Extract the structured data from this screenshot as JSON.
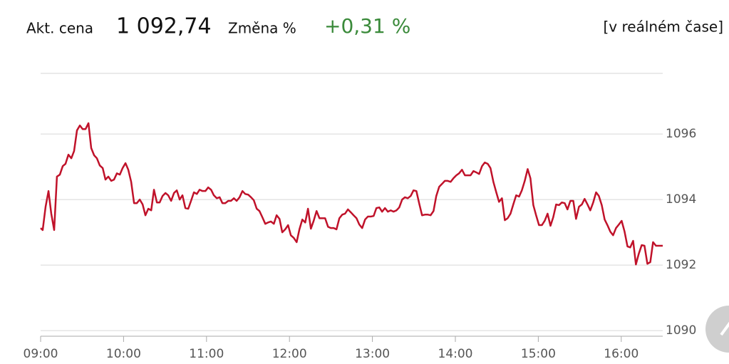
{
  "header": {
    "price_label": "Akt. cena",
    "price": "1 092,74",
    "change_label": "Změna %",
    "change": "+0,31 %",
    "realtime": "[v reálném čase]"
  },
  "chart_data": {
    "type": "line",
    "x": [
      540,
      541.5,
      543.6,
      545.7,
      547.7,
      549.8,
      551.8,
      553.9,
      556,
      558,
      560.1,
      562.2,
      564.2,
      566.3,
      568.4,
      570.4,
      572.5,
      574.6,
      576.6,
      578.7,
      580.7,
      582.8,
      584.9,
      586.9,
      589,
      591.1,
      593.1,
      595.2,
      597.3,
      599.3,
      601.4,
      603.4,
      605.5,
      607.6,
      609.6,
      611.7,
      613.8,
      615.8,
      617.9,
      620,
      622,
      624.1,
      626.1,
      628.2,
      630.3,
      632.3,
      634.4,
      636.5,
      638.5,
      640.6,
      642.6,
      644.7,
      646.8,
      648.8,
      650.9,
      653,
      655,
      657.1,
      659.2,
      661.2,
      663.3,
      665.3,
      667.4,
      669.5,
      671.5,
      673.6,
      675.7,
      677.7,
      679.8,
      681.8,
      683.9,
      686,
      688,
      690.1,
      692.2,
      694.2,
      696.3,
      698.3,
      700.4,
      702.5,
      704.5,
      706.6,
      708.7,
      710.7,
      712.8,
      714.8,
      716.9,
      719,
      721,
      723.1,
      725.2,
      727.2,
      729.3,
      731.4,
      733.4,
      735.5,
      737.5,
      739.6,
      741.7,
      743.7,
      745.8,
      747.9,
      749.9,
      752,
      754,
      756.1,
      758.2,
      760.2,
      762.3,
      764.4,
      766.4,
      768.5,
      770.5,
      772.6,
      774.7,
      776.7,
      778.8,
      780.9,
      782.9,
      785,
      787,
      789.1,
      791.2,
      793.2,
      795.3,
      797.4,
      799.4,
      801.5,
      803.5,
      805.6,
      807.7,
      809.7,
      811.8,
      813.9,
      815.9,
      818,
      820.1,
      822.1,
      824.2,
      826.2,
      828.3,
      830.4,
      832.4,
      834.5,
      836.6,
      838.6,
      840.7,
      842.7,
      844.8,
      846.9,
      848.9,
      851,
      853.1,
      855.1,
      857.2,
      859.3,
      861.3,
      863.4,
      865.4,
      867.5,
      869.6,
      871.6,
      873.7,
      875.8,
      877.8,
      879.9,
      881.9,
      884,
      886.1,
      888.1,
      890.2,
      892.3,
      894.3,
      896.4,
      898.4,
      900.5,
      902.6,
      904.6,
      906.7,
      908.8,
      910.8,
      912.9,
      915,
      917,
      919.1,
      921.1,
      923.2,
      925.3,
      927.3,
      929.4,
      931.5,
      933.5,
      935.6,
      937.6,
      939.7,
      941.8,
      943.8,
      945.9,
      948,
      950,
      952.1,
      954.1,
      956.2,
      958.3,
      960.3,
      962.4,
      964.5,
      966.5,
      968.6,
      970.6,
      972.7,
      974.8,
      976.8,
      978.9,
      981,
      983,
      985.1,
      987.2,
      990
    ],
    "series": [
      {
        "color": "#c0122a",
        "values": [
          1093.13,
          1093.07,
          1093.78,
          1094.26,
          1093.57,
          1093.07,
          1094.7,
          1094.76,
          1095.02,
          1095.09,
          1095.37,
          1095.26,
          1095.48,
          1096.11,
          1096.26,
          1096.15,
          1096.15,
          1096.33,
          1095.57,
          1095.35,
          1095.26,
          1095.04,
          1094.96,
          1094.61,
          1094.7,
          1094.57,
          1094.61,
          1094.8,
          1094.76,
          1094.96,
          1095.11,
          1094.91,
          1094.54,
          1093.89,
          1093.89,
          1094,
          1093.85,
          1093.52,
          1093.72,
          1093.67,
          1094.3,
          1093.91,
          1093.91,
          1094.11,
          1094.2,
          1094.13,
          1093.96,
          1094.2,
          1094.28,
          1094,
          1094.13,
          1093.74,
          1093.72,
          1093.96,
          1094.22,
          1094.17,
          1094.3,
          1094.26,
          1094.26,
          1094.37,
          1094.3,
          1094.13,
          1094.04,
          1094.07,
          1093.89,
          1093.89,
          1093.96,
          1093.96,
          1094.04,
          1093.96,
          1094.07,
          1094.26,
          1094.17,
          1094.15,
          1094.07,
          1093.98,
          1093.72,
          1093.65,
          1093.46,
          1093.26,
          1093.3,
          1093.33,
          1093.26,
          1093.52,
          1093.41,
          1093,
          1093.09,
          1093.22,
          1092.91,
          1092.83,
          1092.7,
          1093.09,
          1093.39,
          1093.3,
          1093.72,
          1093.11,
          1093.35,
          1093.65,
          1093.43,
          1093.43,
          1093.43,
          1093.17,
          1093.13,
          1093.13,
          1093.09,
          1093.43,
          1093.54,
          1093.57,
          1093.7,
          1093.61,
          1093.52,
          1093.43,
          1093.24,
          1093.13,
          1093.39,
          1093.48,
          1093.48,
          1093.5,
          1093.74,
          1093.76,
          1093.63,
          1093.74,
          1093.63,
          1093.67,
          1093.63,
          1093.67,
          1093.76,
          1094,
          1094.07,
          1094.04,
          1094.11,
          1094.28,
          1094.26,
          1093.87,
          1093.52,
          1093.54,
          1093.54,
          1093.52,
          1093.65,
          1094.11,
          1094.39,
          1094.48,
          1094.57,
          1094.57,
          1094.54,
          1094.65,
          1094.74,
          1094.8,
          1094.91,
          1094.74,
          1094.74,
          1094.74,
          1094.87,
          1094.83,
          1094.78,
          1095.02,
          1095.13,
          1095.09,
          1094.96,
          1094.54,
          1094.22,
          1093.93,
          1094.04,
          1093.37,
          1093.43,
          1093.57,
          1093.85,
          1094.13,
          1094.09,
          1094.28,
          1094.57,
          1094.93,
          1094.65,
          1093.83,
          1093.52,
          1093.22,
          1093.22,
          1093.35,
          1093.57,
          1093.2,
          1093.46,
          1093.85,
          1093.83,
          1093.91,
          1093.89,
          1093.7,
          1093.96,
          1093.96,
          1093.41,
          1093.78,
          1093.85,
          1094.02,
          1093.85,
          1093.67,
          1093.91,
          1094.22,
          1094.11,
          1093.83,
          1093.39,
          1093.22,
          1093.02,
          1092.91,
          1093.13,
          1093.24,
          1093.35,
          1093.02,
          1092.57,
          1092.54,
          1092.74,
          1092.02,
          1092.35,
          1092.61,
          1092.59,
          1092.04,
          1092.09,
          1092.7,
          1092.59,
          1092.59,
          1092.59
        ]
      }
    ],
    "xlim": [
      540,
      990
    ],
    "xticks": [
      {
        "value": 540,
        "label": "09:00"
      },
      {
        "value": 600,
        "label": "10:00"
      },
      {
        "value": 660,
        "label": "11:00"
      },
      {
        "value": 720,
        "label": "12:00"
      },
      {
        "value": 780,
        "label": "13:00"
      },
      {
        "value": 840,
        "label": "14:00"
      },
      {
        "value": 900,
        "label": "15:00"
      },
      {
        "value": 960,
        "label": "16:00"
      }
    ],
    "ylim": [
      1089.83,
      1097.85
    ],
    "yticks": [
      1090,
      1092,
      1094,
      1096
    ],
    "grid": true
  }
}
